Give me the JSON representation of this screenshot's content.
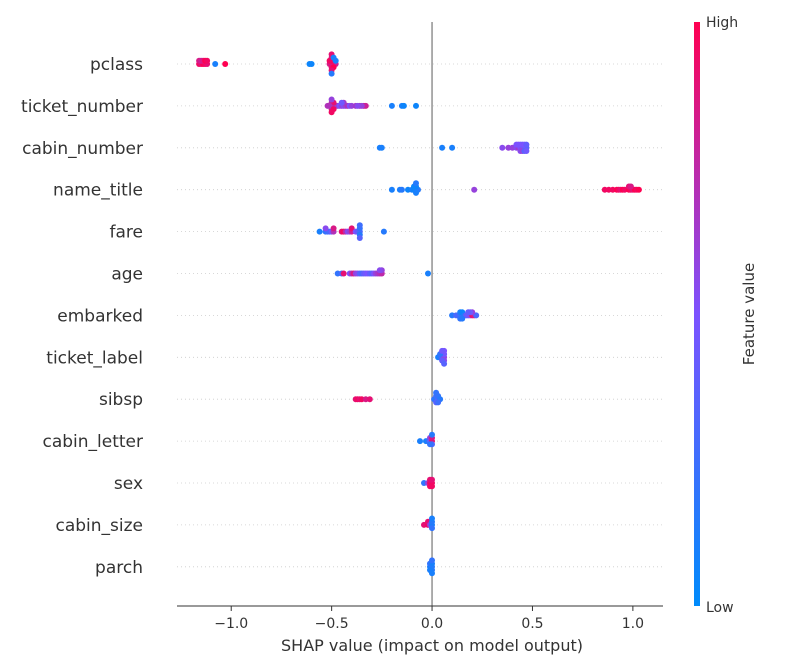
{
  "chart_data": {
    "type": "scatter",
    "subtype": "beeswarm",
    "xlabel": "SHAP value (impact on model output)",
    "xlim": [
      -1.27,
      1.15
    ],
    "xticks": [
      -1.0,
      -0.5,
      0.0,
      0.5,
      1.0
    ],
    "xtick_labels": [
      "−1.0",
      "−0.5",
      "0.0",
      "0.5",
      "1.0"
    ],
    "zero_line": 0.0,
    "grid": "horizontal dotted per feature row",
    "colors": {
      "low": "#008bfb",
      "high": "#ff0051",
      "zero_line": "#999999",
      "axis": "#333333"
    },
    "colorbar": {
      "title": "Feature value",
      "high_label": "High",
      "low_label": "Low",
      "placement": "right"
    },
    "features": [
      {
        "name": "pclass",
        "points": [
          [
            -1.16,
            0.95
          ],
          [
            -1.15,
            0.9
          ],
          [
            -1.14,
            1
          ],
          [
            -1.13,
            0.95
          ],
          [
            -1.12,
            0.9
          ],
          [
            -1.16,
            0.85
          ],
          [
            -1.15,
            0.8
          ],
          [
            -1.14,
            0.85
          ],
          [
            -1.13,
            1
          ],
          [
            -1.12,
            0.95
          ],
          [
            -1.03,
            1
          ],
          [
            -1.08,
            0.1
          ],
          [
            -0.61,
            0.05
          ],
          [
            -0.6,
            0.05
          ],
          [
            -0.5,
            0.95
          ],
          [
            -0.49,
            0.9
          ],
          [
            -0.51,
            0.85
          ],
          [
            -0.48,
            0.8
          ],
          [
            -0.5,
            1
          ],
          [
            -0.49,
            0.95
          ],
          [
            -0.5,
            0.9
          ],
          [
            -0.5,
            0.85
          ],
          [
            -0.49,
            1
          ],
          [
            -0.5,
            0.9
          ],
          [
            -0.51,
            0.95
          ],
          [
            -0.5,
            0.9
          ],
          [
            -0.49,
            0.1
          ],
          [
            -0.5,
            0.15
          ],
          [
            -0.48,
            0.1
          ]
        ]
      },
      {
        "name": "ticket_number",
        "points": [
          [
            -0.52,
            0.7
          ],
          [
            -0.5,
            0.6
          ],
          [
            -0.49,
            0.8
          ],
          [
            -0.48,
            0.55
          ],
          [
            -0.47,
            0.65
          ],
          [
            -0.5,
            0.75
          ],
          [
            -0.49,
            0.9
          ],
          [
            -0.5,
            0.85
          ],
          [
            -0.51,
            0.7
          ],
          [
            -0.5,
            0.6
          ],
          [
            -0.46,
            0.5
          ],
          [
            -0.45,
            0.6
          ],
          [
            -0.44,
            0.55
          ],
          [
            -0.43,
            0.6
          ],
          [
            -0.42,
            0.7
          ],
          [
            -0.44,
            0.65
          ],
          [
            -0.45,
            0.45
          ],
          [
            -0.41,
            0.5
          ],
          [
            -0.4,
            0.6
          ],
          [
            -0.38,
            0.65
          ],
          [
            -0.36,
            0.7
          ],
          [
            -0.34,
            0.85
          ],
          [
            -0.33,
            0.8
          ],
          [
            -0.35,
            0.6
          ],
          [
            -0.37,
            0.55
          ],
          [
            -0.2,
            0.1
          ],
          [
            -0.15,
            0.1
          ],
          [
            -0.14,
            0.05
          ],
          [
            -0.08,
            0.05
          ],
          [
            -0.5,
            0.95
          ],
          [
            -0.49,
            0.95
          ]
        ]
      },
      {
        "name": "cabin_number",
        "points": [
          [
            -0.26,
            0.1
          ],
          [
            -0.25,
            0.1
          ],
          [
            0.05,
            0.1
          ],
          [
            0.1,
            0.1
          ],
          [
            0.35,
            0.55
          ],
          [
            0.4,
            0.6
          ],
          [
            0.42,
            0.55
          ],
          [
            0.43,
            0.65
          ],
          [
            0.44,
            0.5
          ],
          [
            0.45,
            0.6
          ],
          [
            0.46,
            0.45
          ],
          [
            0.47,
            0.35
          ],
          [
            0.45,
            0.4
          ],
          [
            0.44,
            0.45
          ],
          [
            0.46,
            0.5
          ],
          [
            0.47,
            0.4
          ],
          [
            0.43,
            0.5
          ],
          [
            0.44,
            0.55
          ],
          [
            0.45,
            0.6
          ],
          [
            0.46,
            0.35
          ],
          [
            0.47,
            0.45
          ],
          [
            0.42,
            0.5
          ],
          [
            0.38,
            0.6
          ]
        ]
      },
      {
        "name": "name_title",
        "points": [
          [
            -0.2,
            0.1
          ],
          [
            -0.16,
            0.1
          ],
          [
            -0.15,
            0.15
          ],
          [
            -0.12,
            0.05
          ],
          [
            -0.1,
            0.1
          ],
          [
            -0.09,
            0.05
          ],
          [
            -0.08,
            0.1
          ],
          [
            -0.07,
            0.15
          ],
          [
            -0.09,
            0.05
          ],
          [
            -0.08,
            0.05
          ],
          [
            -0.08,
            0.1
          ],
          [
            -0.08,
            0.15
          ],
          [
            0.21,
            0.6
          ],
          [
            0.86,
            0.95
          ],
          [
            0.88,
            0.95
          ],
          [
            0.9,
            0.95
          ],
          [
            0.92,
            1
          ],
          [
            0.93,
            0.95
          ],
          [
            0.94,
            0.9
          ],
          [
            0.95,
            1
          ],
          [
            0.96,
            0.95
          ],
          [
            0.98,
            1
          ],
          [
            0.99,
            0.95
          ],
          [
            1.0,
            0.9
          ],
          [
            1.01,
            1
          ],
          [
            1.02,
            0.95
          ],
          [
            1.03,
            1
          ],
          [
            0.98,
            0.9
          ],
          [
            0.99,
            0.85
          ]
        ]
      },
      {
        "name": "fare",
        "points": [
          [
            -0.56,
            0.1
          ],
          [
            -0.53,
            0.2
          ],
          [
            -0.52,
            0.25
          ],
          [
            -0.51,
            0.3
          ],
          [
            -0.5,
            0.45
          ],
          [
            -0.49,
            0.7
          ],
          [
            -0.49,
            0.85
          ],
          [
            -0.45,
            0.9
          ],
          [
            -0.44,
            0.95
          ],
          [
            -0.43,
            0.75
          ],
          [
            -0.42,
            0.55
          ],
          [
            -0.41,
            0.6
          ],
          [
            -0.4,
            0.8
          ],
          [
            -0.4,
            0.9
          ],
          [
            -0.38,
            0.5
          ],
          [
            -0.37,
            0.4
          ],
          [
            -0.36,
            0.3
          ],
          [
            -0.36,
            0.2
          ],
          [
            -0.36,
            0.15
          ],
          [
            -0.36,
            0.25
          ],
          [
            -0.36,
            0.35
          ],
          [
            -0.24,
            0.15
          ],
          [
            -0.53,
            0.55
          ]
        ]
      },
      {
        "name": "age",
        "points": [
          [
            -0.47,
            0.2
          ],
          [
            -0.45,
            0.3
          ],
          [
            -0.44,
            0.9
          ],
          [
            -0.41,
            0.5
          ],
          [
            -0.4,
            0.7
          ],
          [
            -0.39,
            0.85
          ],
          [
            -0.38,
            0.6
          ],
          [
            -0.37,
            0.55
          ],
          [
            -0.36,
            0.35
          ],
          [
            -0.35,
            0.3
          ],
          [
            -0.34,
            0.4
          ],
          [
            -0.33,
            0.45
          ],
          [
            -0.32,
            0.5
          ],
          [
            -0.31,
            0.4
          ],
          [
            -0.3,
            0.35
          ],
          [
            -0.29,
            0.5
          ],
          [
            -0.28,
            0.6
          ],
          [
            -0.27,
            0.65
          ],
          [
            -0.26,
            0.7
          ],
          [
            -0.25,
            0.75
          ],
          [
            -0.25,
            0.6
          ],
          [
            -0.26,
            0.55
          ],
          [
            -0.02,
            0.1
          ]
        ]
      },
      {
        "name": "embarked",
        "points": [
          [
            0.1,
            0.15
          ],
          [
            0.12,
            0.3
          ],
          [
            0.14,
            0.25
          ],
          [
            0.15,
            0.2
          ],
          [
            0.14,
            0.1
          ],
          [
            0.15,
            0.05
          ],
          [
            0.16,
            0.15
          ],
          [
            0.17,
            0.4
          ],
          [
            0.18,
            0.45
          ],
          [
            0.19,
            0.55
          ],
          [
            0.2,
            0.9
          ],
          [
            0.21,
            0.85
          ],
          [
            0.22,
            0.3
          ],
          [
            0.2,
            0.6
          ],
          [
            0.19,
            0.45
          ],
          [
            0.18,
            0.4
          ],
          [
            0.14,
            0.2
          ],
          [
            0.15,
            0.15
          ]
        ]
      },
      {
        "name": "ticket_label",
        "points": [
          [
            0.03,
            0.1
          ],
          [
            0.04,
            0.15
          ],
          [
            0.05,
            0.3
          ],
          [
            0.05,
            0.5
          ],
          [
            0.06,
            0.6
          ],
          [
            0.06,
            0.45
          ],
          [
            0.06,
            0.55
          ],
          [
            0.06,
            0.5
          ],
          [
            0.05,
            0.4
          ],
          [
            0.06,
            0.35
          ],
          [
            0.04,
            0.2
          ],
          [
            0.05,
            0.45
          ]
        ]
      },
      {
        "name": "sibsp",
        "points": [
          [
            -0.38,
            0.9
          ],
          [
            -0.37,
            0.95
          ],
          [
            -0.36,
            0.9
          ],
          [
            -0.35,
            0.95
          ],
          [
            -0.33,
            0.85
          ],
          [
            -0.31,
            0.9
          ],
          [
            0.01,
            0.2
          ],
          [
            0.02,
            0.15
          ],
          [
            0.02,
            0.25
          ],
          [
            0.03,
            0.3
          ],
          [
            0.03,
            0.2
          ],
          [
            0.04,
            0.15
          ],
          [
            0.02,
            0.35
          ],
          [
            0.03,
            0.25
          ],
          [
            0.02,
            0.2
          ]
        ]
      },
      {
        "name": "cabin_letter",
        "points": [
          [
            -0.06,
            0.1
          ],
          [
            -0.03,
            0.1
          ],
          [
            -0.02,
            0.15
          ],
          [
            -0.01,
            0.4
          ],
          [
            -0.01,
            0.6
          ],
          [
            0.0,
            0.9
          ],
          [
            0.0,
            0.85
          ],
          [
            0.0,
            0.3
          ],
          [
            -0.01,
            0.2
          ],
          [
            0.0,
            0.15
          ]
        ]
      },
      {
        "name": "sex",
        "points": [
          [
            -0.04,
            0.2
          ],
          [
            -0.02,
            0.6
          ],
          [
            -0.01,
            0.95
          ],
          [
            0.0,
            0.95
          ],
          [
            -0.01,
            0.9
          ],
          [
            0.0,
            0.9
          ],
          [
            -0.01,
            0.95
          ],
          [
            0.0,
            0.95
          ]
        ]
      },
      {
        "name": "cabin_size",
        "points": [
          [
            -0.04,
            0.9
          ],
          [
            -0.02,
            0.95
          ],
          [
            -0.02,
            0.9
          ],
          [
            -0.01,
            0.6
          ],
          [
            0.0,
            0.1
          ],
          [
            0.0,
            0.15
          ],
          [
            0.0,
            0.2
          ],
          [
            0.0,
            0.1
          ]
        ]
      },
      {
        "name": "parch",
        "points": [
          [
            -0.01,
            0.1
          ],
          [
            0.0,
            0.15
          ],
          [
            -0.01,
            0.2
          ],
          [
            0.0,
            0.1
          ],
          [
            0.0,
            0.15
          ],
          [
            -0.01,
            0.1
          ],
          [
            0.0,
            0.2
          ],
          [
            0.0,
            0.1
          ]
        ]
      }
    ]
  }
}
